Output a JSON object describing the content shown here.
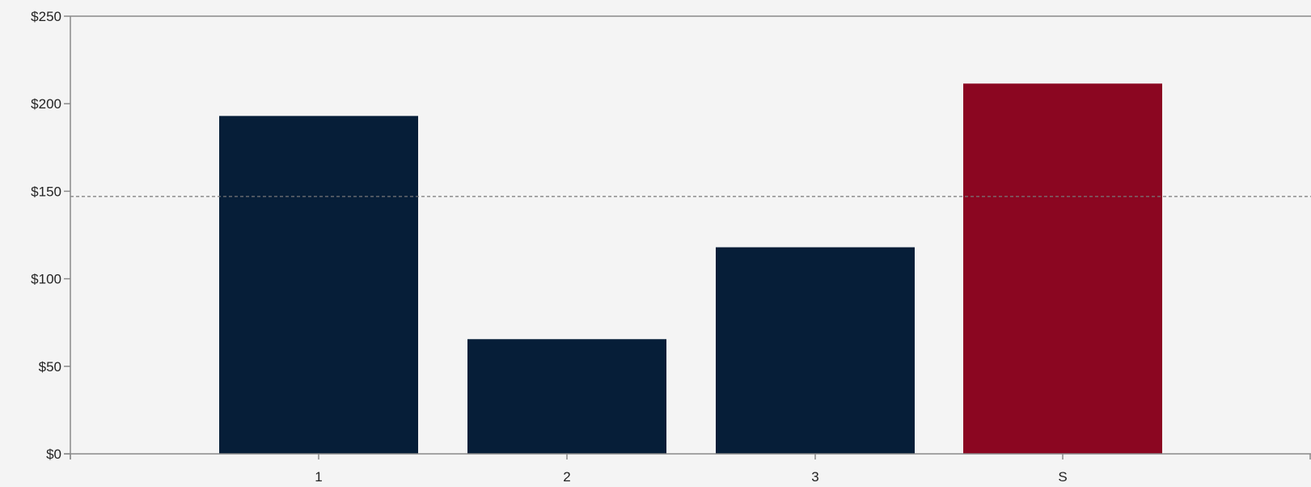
{
  "chart_data": {
    "type": "bar",
    "categories": [
      "1",
      "2",
      "3",
      "S"
    ],
    "values": [
      193,
      65.5,
      118,
      211.5
    ],
    "bar_colors": [
      "#061e38",
      "#061e38",
      "#061e38",
      "#8b0621"
    ],
    "ylim": [
      0,
      250
    ],
    "y_ticks": [
      0,
      50,
      100,
      150,
      200,
      250
    ],
    "y_tick_labels": [
      "$0",
      "$50",
      "$100",
      "$150",
      "$200",
      "$250"
    ],
    "reference_line": 147,
    "grid": false,
    "title": "",
    "xlabel": "",
    "ylabel": ""
  },
  "colors": {
    "background": "#f4f4f4",
    "axis": "#8a8a8a",
    "reference_line": "#777777",
    "text": "#222222"
  }
}
